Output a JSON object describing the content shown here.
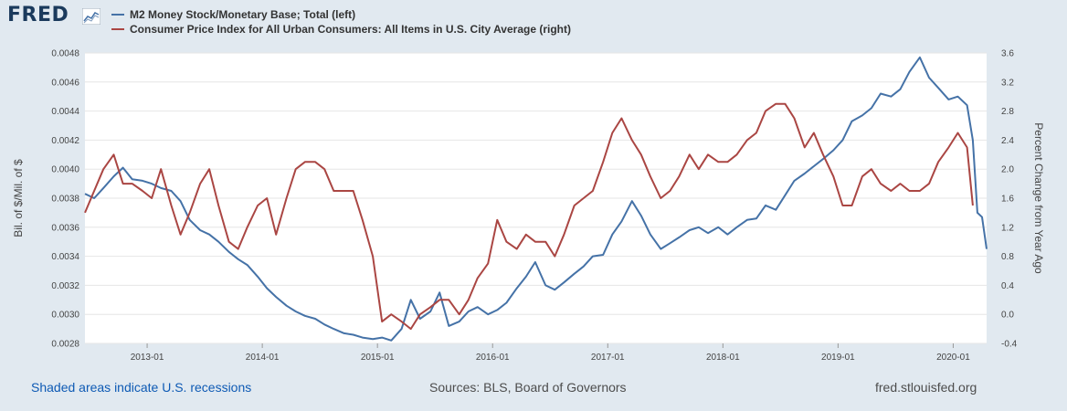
{
  "logo": {
    "text": "FRED"
  },
  "legend": [
    {
      "label": "M2 Money Stock/Monetary Base; Total (left)",
      "color": "#4572a7"
    },
    {
      "label": "Consumer Price Index for All Urban Consumers: All Items in U.S. City Average (right)",
      "color": "#aa4643"
    }
  ],
  "footer": {
    "recessions": "Shaded areas indicate U.S. recessions",
    "sources": "Sources: BLS, Board of Governors",
    "site": "fred.stlouisfed.org"
  },
  "chart_data": {
    "type": "line",
    "x_range": [
      2012.46,
      2020.29
    ],
    "x_ticks": [
      {
        "label": "2013-01",
        "x": 2013.0
      },
      {
        "label": "2014-01",
        "x": 2014.0
      },
      {
        "label": "2015-01",
        "x": 2015.0
      },
      {
        "label": "2016-01",
        "x": 2016.0
      },
      {
        "label": "2017-01",
        "x": 2017.0
      },
      {
        "label": "2018-01",
        "x": 2018.0
      },
      {
        "label": "2019-01",
        "x": 2019.0
      },
      {
        "label": "2020-01",
        "x": 2020.0
      }
    ],
    "y_left": {
      "label": "Bil. of $/Mil. of $",
      "range": [
        0.0028,
        0.0048
      ],
      "ticks": [
        "0.0028",
        "0.0030",
        "0.0032",
        "0.0034",
        "0.0036",
        "0.0038",
        "0.0040",
        "0.0042",
        "0.0044",
        "0.0046",
        "0.0048"
      ]
    },
    "y_right": {
      "label": "Percent Change from Year Ago",
      "range": [
        -0.4,
        3.6
      ],
      "ticks": [
        "-0.4",
        "0.0",
        "0.4",
        "0.8",
        "1.2",
        "1.6",
        "2.0",
        "2.4",
        "2.8",
        "3.2",
        "3.6"
      ]
    },
    "series": [
      {
        "name": "M2 Money Stock/Monetary Base; Total (left)",
        "axis": "left",
        "color": "#4572a7",
        "points": [
          [
            2012.46,
            0.00383
          ],
          [
            2012.54,
            0.0038
          ],
          [
            2012.62,
            0.00387
          ],
          [
            2012.71,
            0.00395
          ],
          [
            2012.79,
            0.00401
          ],
          [
            2012.87,
            0.00393
          ],
          [
            2012.96,
            0.00392
          ],
          [
            2013.04,
            0.0039
          ],
          [
            2013.12,
            0.00387
          ],
          [
            2013.21,
            0.00385
          ],
          [
            2013.29,
            0.00378
          ],
          [
            2013.37,
            0.00365
          ],
          [
            2013.46,
            0.00358
          ],
          [
            2013.54,
            0.00355
          ],
          [
            2013.62,
            0.0035
          ],
          [
            2013.71,
            0.00343
          ],
          [
            2013.79,
            0.00338
          ],
          [
            2013.87,
            0.00334
          ],
          [
            2013.96,
            0.00326
          ],
          [
            2014.04,
            0.00318
          ],
          [
            2014.12,
            0.00312
          ],
          [
            2014.21,
            0.00306
          ],
          [
            2014.29,
            0.00302
          ],
          [
            2014.37,
            0.00299
          ],
          [
            2014.46,
            0.00297
          ],
          [
            2014.54,
            0.00293
          ],
          [
            2014.62,
            0.0029
          ],
          [
            2014.71,
            0.00287
          ],
          [
            2014.79,
            0.00286
          ],
          [
            2014.87,
            0.00284
          ],
          [
            2014.96,
            0.00283
          ],
          [
            2015.04,
            0.00284
          ],
          [
            2015.12,
            0.00282
          ],
          [
            2015.21,
            0.0029
          ],
          [
            2015.29,
            0.0031
          ],
          [
            2015.37,
            0.00297
          ],
          [
            2015.46,
            0.00302
          ],
          [
            2015.54,
            0.00315
          ],
          [
            2015.62,
            0.00292
          ],
          [
            2015.71,
            0.00295
          ],
          [
            2015.79,
            0.00302
          ],
          [
            2015.87,
            0.00305
          ],
          [
            2015.96,
            0.003
          ],
          [
            2016.04,
            0.00303
          ],
          [
            2016.12,
            0.00308
          ],
          [
            2016.21,
            0.00318
          ],
          [
            2016.29,
            0.00326
          ],
          [
            2016.37,
            0.00336
          ],
          [
            2016.46,
            0.0032
          ],
          [
            2016.54,
            0.00317
          ],
          [
            2016.62,
            0.00322
          ],
          [
            2016.71,
            0.00328
          ],
          [
            2016.79,
            0.00333
          ],
          [
            2016.87,
            0.0034
          ],
          [
            2016.96,
            0.00341
          ],
          [
            2017.04,
            0.00355
          ],
          [
            2017.12,
            0.00364
          ],
          [
            2017.21,
            0.00378
          ],
          [
            2017.29,
            0.00368
          ],
          [
            2017.37,
            0.00355
          ],
          [
            2017.46,
            0.00345
          ],
          [
            2017.54,
            0.00349
          ],
          [
            2017.62,
            0.00353
          ],
          [
            2017.71,
            0.00358
          ],
          [
            2017.79,
            0.0036
          ],
          [
            2017.87,
            0.00356
          ],
          [
            2017.96,
            0.0036
          ],
          [
            2018.04,
            0.00355
          ],
          [
            2018.12,
            0.0036
          ],
          [
            2018.21,
            0.00365
          ],
          [
            2018.29,
            0.00366
          ],
          [
            2018.37,
            0.00375
          ],
          [
            2018.46,
            0.00372
          ],
          [
            2018.54,
            0.00382
          ],
          [
            2018.62,
            0.00392
          ],
          [
            2018.71,
            0.00397
          ],
          [
            2018.79,
            0.00402
          ],
          [
            2018.87,
            0.00407
          ],
          [
            2018.96,
            0.00413
          ],
          [
            2019.04,
            0.0042
          ],
          [
            2019.12,
            0.00433
          ],
          [
            2019.21,
            0.00437
          ],
          [
            2019.29,
            0.00442
          ],
          [
            2019.37,
            0.00452
          ],
          [
            2019.46,
            0.0045
          ],
          [
            2019.54,
            0.00455
          ],
          [
            2019.62,
            0.00467
          ],
          [
            2019.71,
            0.00477
          ],
          [
            2019.79,
            0.00463
          ],
          [
            2019.87,
            0.00456
          ],
          [
            2019.96,
            0.00448
          ],
          [
            2020.04,
            0.0045
          ],
          [
            2020.12,
            0.00444
          ],
          [
            2020.17,
            0.0042
          ],
          [
            2020.21,
            0.0037
          ],
          [
            2020.25,
            0.00367
          ],
          [
            2020.29,
            0.00345
          ]
        ]
      },
      {
        "name": "Consumer Price Index for All Urban Consumers: All Items in U.S. City Average (right)",
        "axis": "right",
        "color": "#aa4643",
        "points": [
          [
            2012.46,
            1.4
          ],
          [
            2012.54,
            1.7
          ],
          [
            2012.62,
            2.0
          ],
          [
            2012.71,
            2.2
          ],
          [
            2012.79,
            1.8
          ],
          [
            2012.87,
            1.8
          ],
          [
            2012.96,
            1.7
          ],
          [
            2013.04,
            1.6
          ],
          [
            2013.12,
            2.0
          ],
          [
            2013.21,
            1.5
          ],
          [
            2013.29,
            1.1
          ],
          [
            2013.37,
            1.4
          ],
          [
            2013.46,
            1.8
          ],
          [
            2013.54,
            2.0
          ],
          [
            2013.62,
            1.5
          ],
          [
            2013.71,
            1.0
          ],
          [
            2013.79,
            0.9
          ],
          [
            2013.87,
            1.2
          ],
          [
            2013.96,
            1.5
          ],
          [
            2014.04,
            1.6
          ],
          [
            2014.12,
            1.1
          ],
          [
            2014.21,
            1.6
          ],
          [
            2014.29,
            2.0
          ],
          [
            2014.37,
            2.1
          ],
          [
            2014.46,
            2.1
          ],
          [
            2014.54,
            2.0
          ],
          [
            2014.62,
            1.7
          ],
          [
            2014.71,
            1.7
          ],
          [
            2014.79,
            1.7
          ],
          [
            2014.87,
            1.3
          ],
          [
            2014.96,
            0.8
          ],
          [
            2015.04,
            -0.1
          ],
          [
            2015.12,
            0.0
          ],
          [
            2015.21,
            -0.1
          ],
          [
            2015.29,
            -0.2
          ],
          [
            2015.37,
            0.0
          ],
          [
            2015.46,
            0.1
          ],
          [
            2015.54,
            0.2
          ],
          [
            2015.62,
            0.2
          ],
          [
            2015.71,
            0.0
          ],
          [
            2015.79,
            0.2
          ],
          [
            2015.87,
            0.5
          ],
          [
            2015.96,
            0.7
          ],
          [
            2016.04,
            1.3
          ],
          [
            2016.12,
            1.0
          ],
          [
            2016.21,
            0.9
          ],
          [
            2016.29,
            1.1
          ],
          [
            2016.37,
            1.0
          ],
          [
            2016.46,
            1.0
          ],
          [
            2016.54,
            0.8
          ],
          [
            2016.62,
            1.1
          ],
          [
            2016.71,
            1.5
          ],
          [
            2016.79,
            1.6
          ],
          [
            2016.87,
            1.7
          ],
          [
            2016.96,
            2.1
          ],
          [
            2017.04,
            2.5
          ],
          [
            2017.12,
            2.7
          ],
          [
            2017.21,
            2.4
          ],
          [
            2017.29,
            2.2
          ],
          [
            2017.37,
            1.9
          ],
          [
            2017.46,
            1.6
          ],
          [
            2017.54,
            1.7
          ],
          [
            2017.62,
            1.9
          ],
          [
            2017.71,
            2.2
          ],
          [
            2017.79,
            2.0
          ],
          [
            2017.87,
            2.2
          ],
          [
            2017.96,
            2.1
          ],
          [
            2018.04,
            2.1
          ],
          [
            2018.12,
            2.2
          ],
          [
            2018.21,
            2.4
          ],
          [
            2018.29,
            2.5
          ],
          [
            2018.37,
            2.8
          ],
          [
            2018.46,
            2.9
          ],
          [
            2018.54,
            2.9
          ],
          [
            2018.62,
            2.7
          ],
          [
            2018.71,
            2.3
          ],
          [
            2018.79,
            2.5
          ],
          [
            2018.87,
            2.2
          ],
          [
            2018.96,
            1.9
          ],
          [
            2019.04,
            1.5
          ],
          [
            2019.12,
            1.5
          ],
          [
            2019.21,
            1.9
          ],
          [
            2019.29,
            2.0
          ],
          [
            2019.37,
            1.8
          ],
          [
            2019.46,
            1.7
          ],
          [
            2019.54,
            1.8
          ],
          [
            2019.62,
            1.7
          ],
          [
            2019.71,
            1.7
          ],
          [
            2019.79,
            1.8
          ],
          [
            2019.87,
            2.1
          ],
          [
            2019.96,
            2.3
          ],
          [
            2020.04,
            2.5
          ],
          [
            2020.12,
            2.3
          ],
          [
            2020.17,
            1.5
          ]
        ]
      }
    ]
  }
}
